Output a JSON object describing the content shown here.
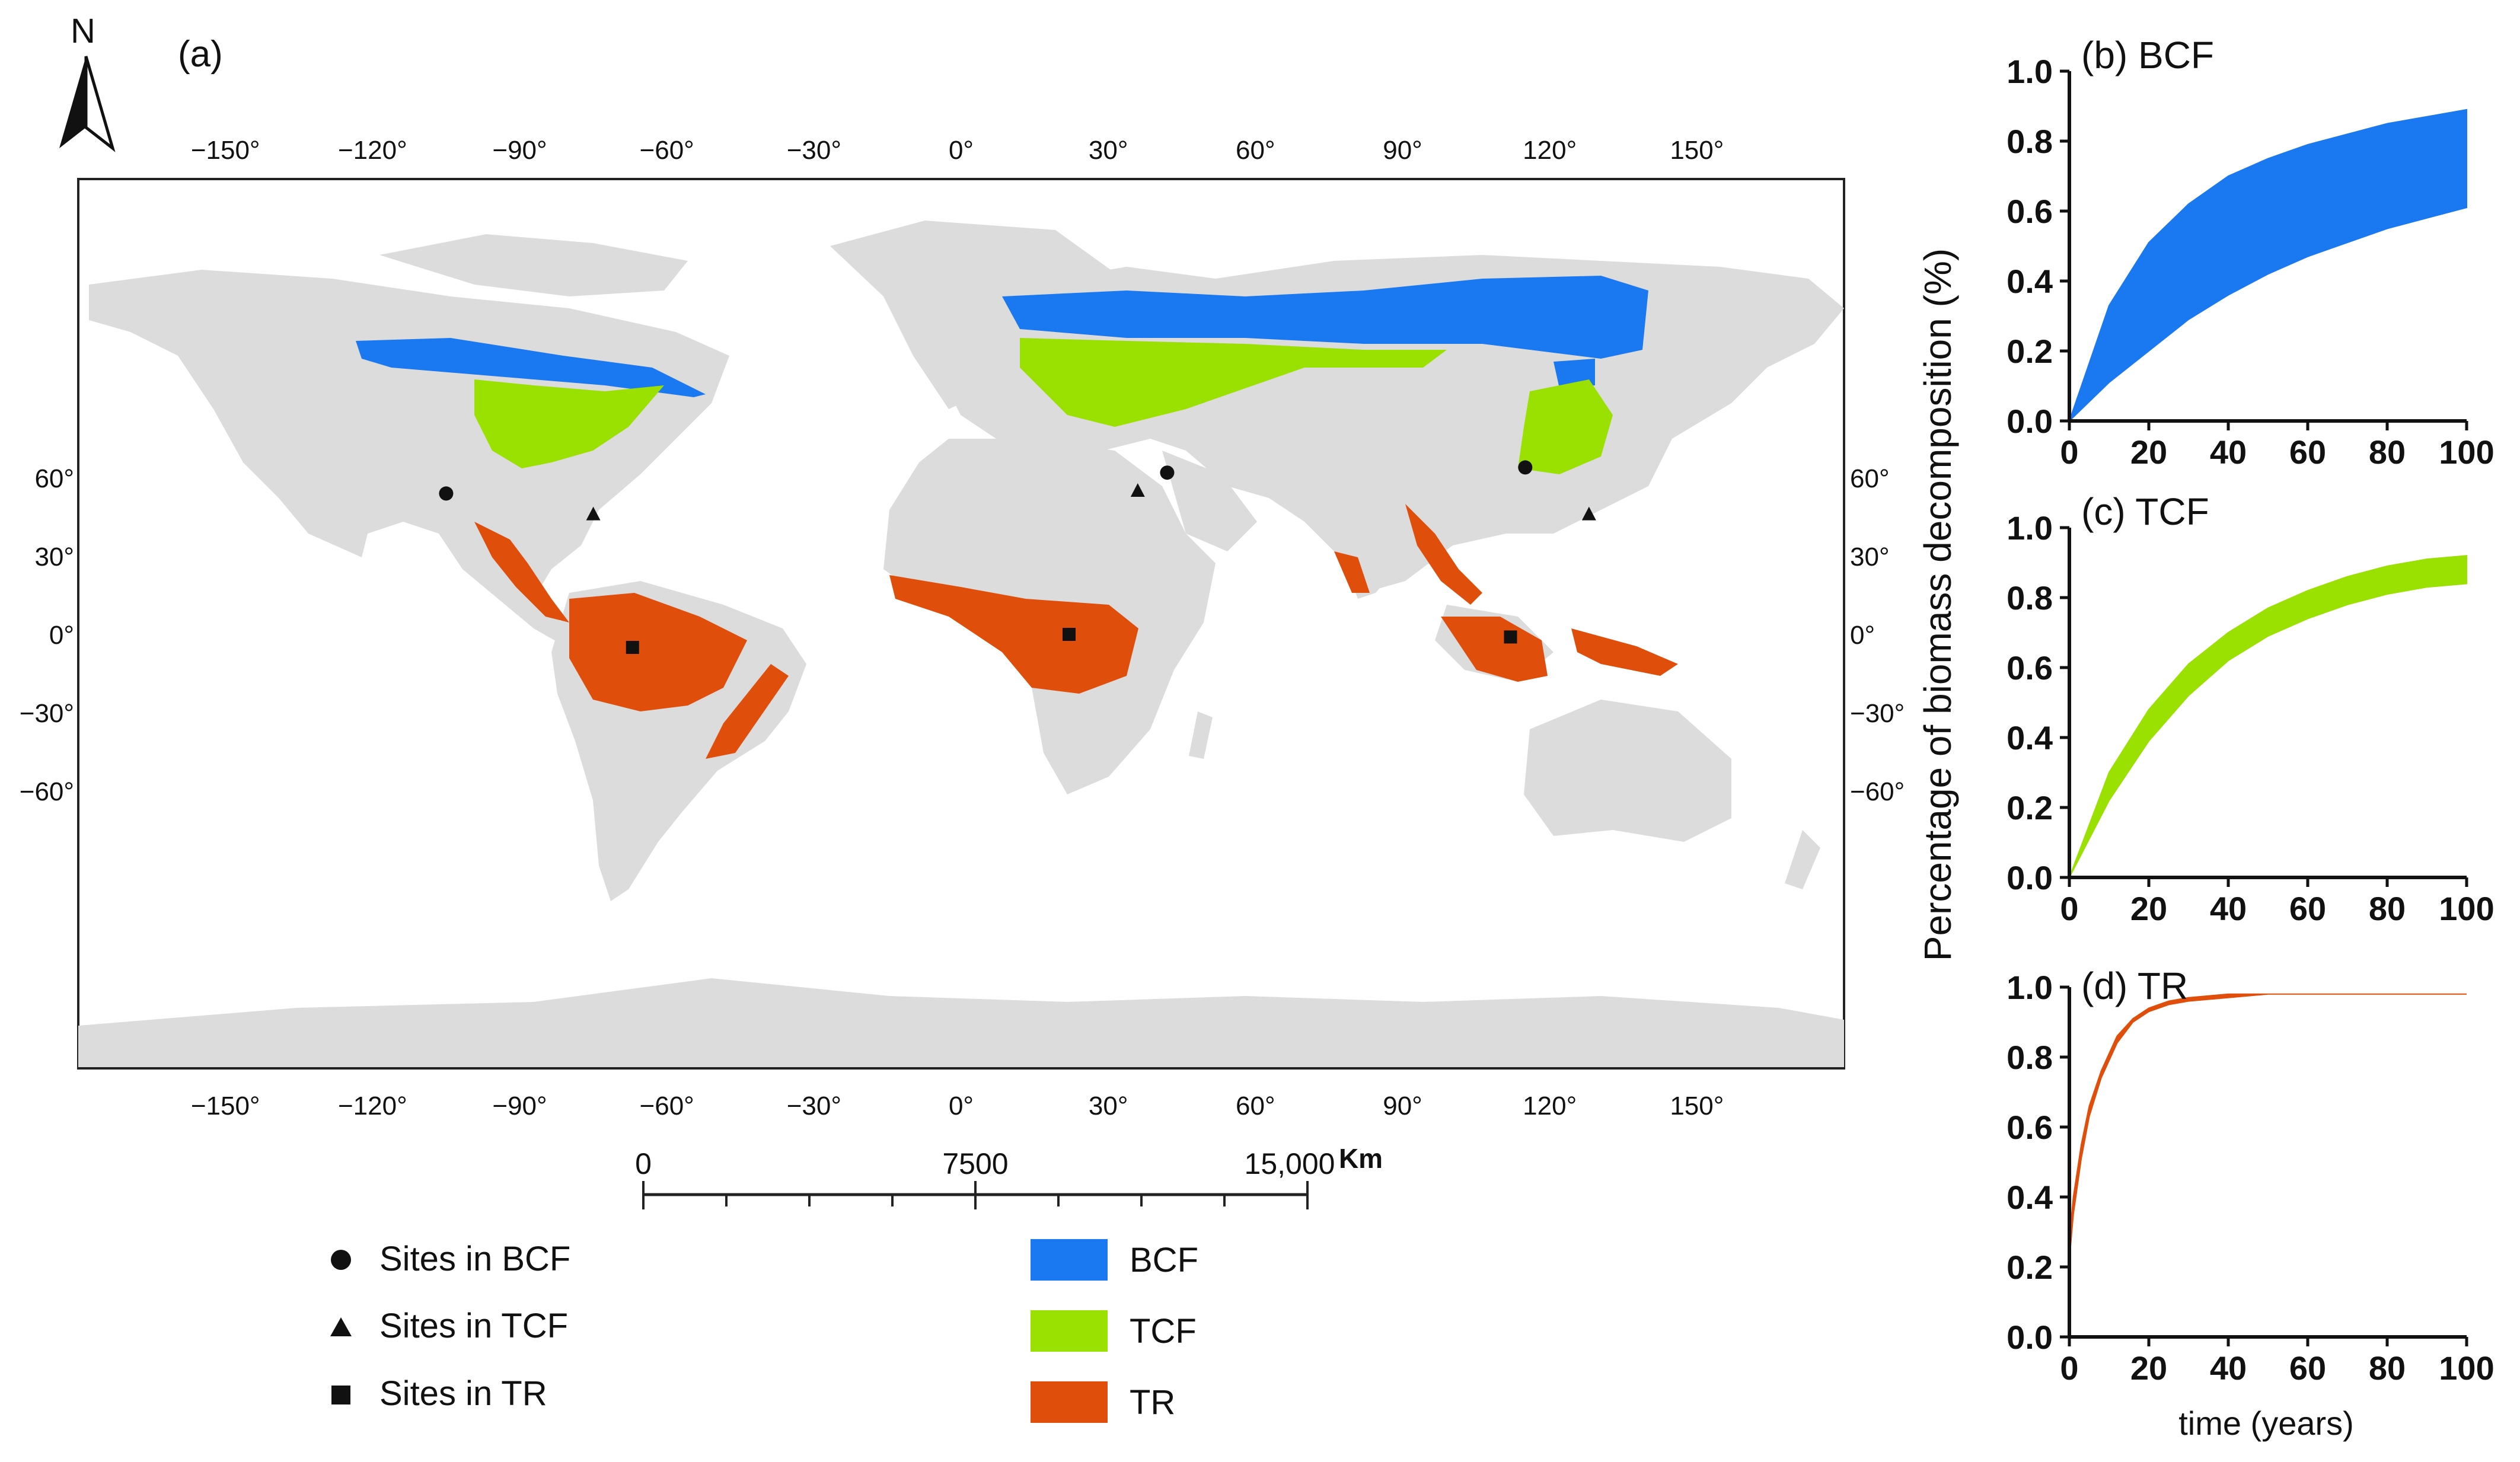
{
  "map": {
    "panel_label": "(a)",
    "north_label": "N",
    "lon_ticks": [
      "−150°",
      "−120°",
      "−90°",
      "−60°",
      "−30°",
      "0°",
      "30°",
      "60°",
      "90°",
      "120°",
      "150°"
    ],
    "lat_ticks": [
      "60°",
      "30°",
      "0°",
      "−30°",
      "−60°"
    ],
    "scale_bar": {
      "labels": [
        "0",
        "7500",
        "15,000"
      ],
      "unit": "Km"
    },
    "legend": {
      "sites": [
        {
          "marker": "circle",
          "label": "Sites in BCF"
        },
        {
          "marker": "triangle",
          "label": "Sites in TCF"
        },
        {
          "marker": "square",
          "label": "Sites in TR"
        }
      ],
      "zones": [
        {
          "color": "#1a78f0",
          "label": "BCF"
        },
        {
          "color": "#9ae000",
          "label": "TCF"
        },
        {
          "color": "#e04e0c",
          "label": "TR"
        }
      ]
    },
    "sites": [
      {
        "zone": "BCF",
        "lon": -105,
        "lat": 54
      },
      {
        "zone": "BCF",
        "lon": 42,
        "lat": 62
      },
      {
        "zone": "BCF",
        "lon": 115,
        "lat": 64
      },
      {
        "zone": "TCF",
        "lon": -75,
        "lat": 46
      },
      {
        "zone": "TCF",
        "lon": 36,
        "lat": 55
      },
      {
        "zone": "TCF",
        "lon": 128,
        "lat": 46
      },
      {
        "zone": "TR",
        "lon": -67,
        "lat": -5
      },
      {
        "zone": "TR",
        "lon": 22,
        "lat": 0
      },
      {
        "zone": "TR",
        "lon": 112,
        "lat": -1
      }
    ],
    "colors": {
      "land": "#dcdcdc",
      "BCF": "#1a78f0",
      "TCF": "#9ae000",
      "TR": "#e04e0c"
    }
  },
  "chart_data": [
    {
      "type": "area",
      "panel": "(b) BCF",
      "color": "#1a78f0",
      "xlim": [
        0,
        100
      ],
      "ylim": [
        0,
        1.0
      ],
      "x_ticks": [
        "0",
        "20",
        "40",
        "60",
        "80",
        "100"
      ],
      "y_ticks": [
        "0.0",
        "0.2",
        "0.4",
        "0.6",
        "0.8",
        "1.0"
      ],
      "x": [
        0,
        10,
        20,
        30,
        40,
        50,
        60,
        70,
        80,
        90,
        100
      ],
      "upper": [
        0,
        0.33,
        0.51,
        0.62,
        0.7,
        0.75,
        0.79,
        0.82,
        0.85,
        0.87,
        0.89
      ],
      "lower": [
        0,
        0.11,
        0.2,
        0.29,
        0.36,
        0.42,
        0.47,
        0.51,
        0.55,
        0.58,
        0.61
      ]
    },
    {
      "type": "area",
      "panel": "(c) TCF",
      "color": "#9ae000",
      "xlim": [
        0,
        100
      ],
      "ylim": [
        0,
        1.0
      ],
      "x_ticks": [
        "0",
        "20",
        "40",
        "60",
        "80",
        "100"
      ],
      "y_ticks": [
        "0.0",
        "0.2",
        "0.4",
        "0.6",
        "0.8",
        "1.0"
      ],
      "x": [
        0,
        10,
        20,
        30,
        40,
        50,
        60,
        70,
        80,
        90,
        100
      ],
      "upper": [
        0,
        0.3,
        0.48,
        0.61,
        0.7,
        0.77,
        0.82,
        0.86,
        0.89,
        0.91,
        0.92
      ],
      "lower": [
        0,
        0.22,
        0.39,
        0.52,
        0.62,
        0.69,
        0.74,
        0.78,
        0.81,
        0.83,
        0.84
      ]
    },
    {
      "type": "area",
      "panel": "(d) TR",
      "color": "#e04e0c",
      "xlim": [
        0,
        100
      ],
      "ylim": [
        0,
        1.0
      ],
      "x_ticks": [
        "0",
        "20",
        "40",
        "60",
        "80",
        "100"
      ],
      "y_ticks": [
        "0.0",
        "0.2",
        "0.4",
        "0.6",
        "0.8",
        "1.0"
      ],
      "xlabel": "time (years)",
      "x": [
        0,
        1,
        3,
        5,
        8,
        12,
        16,
        20,
        25,
        30,
        40,
        50,
        60,
        80,
        100
      ],
      "upper": [
        0.28,
        0.4,
        0.55,
        0.66,
        0.76,
        0.86,
        0.91,
        0.94,
        0.96,
        0.97,
        0.98,
        0.98,
        0.98,
        0.98,
        0.98
      ],
      "lower": [
        0.22,
        0.35,
        0.51,
        0.63,
        0.74,
        0.84,
        0.9,
        0.93,
        0.95,
        0.96,
        0.97,
        0.98,
        0.98,
        0.98,
        0.98
      ]
    }
  ],
  "ylabel": "Percentage of biomass decomposition (%)"
}
